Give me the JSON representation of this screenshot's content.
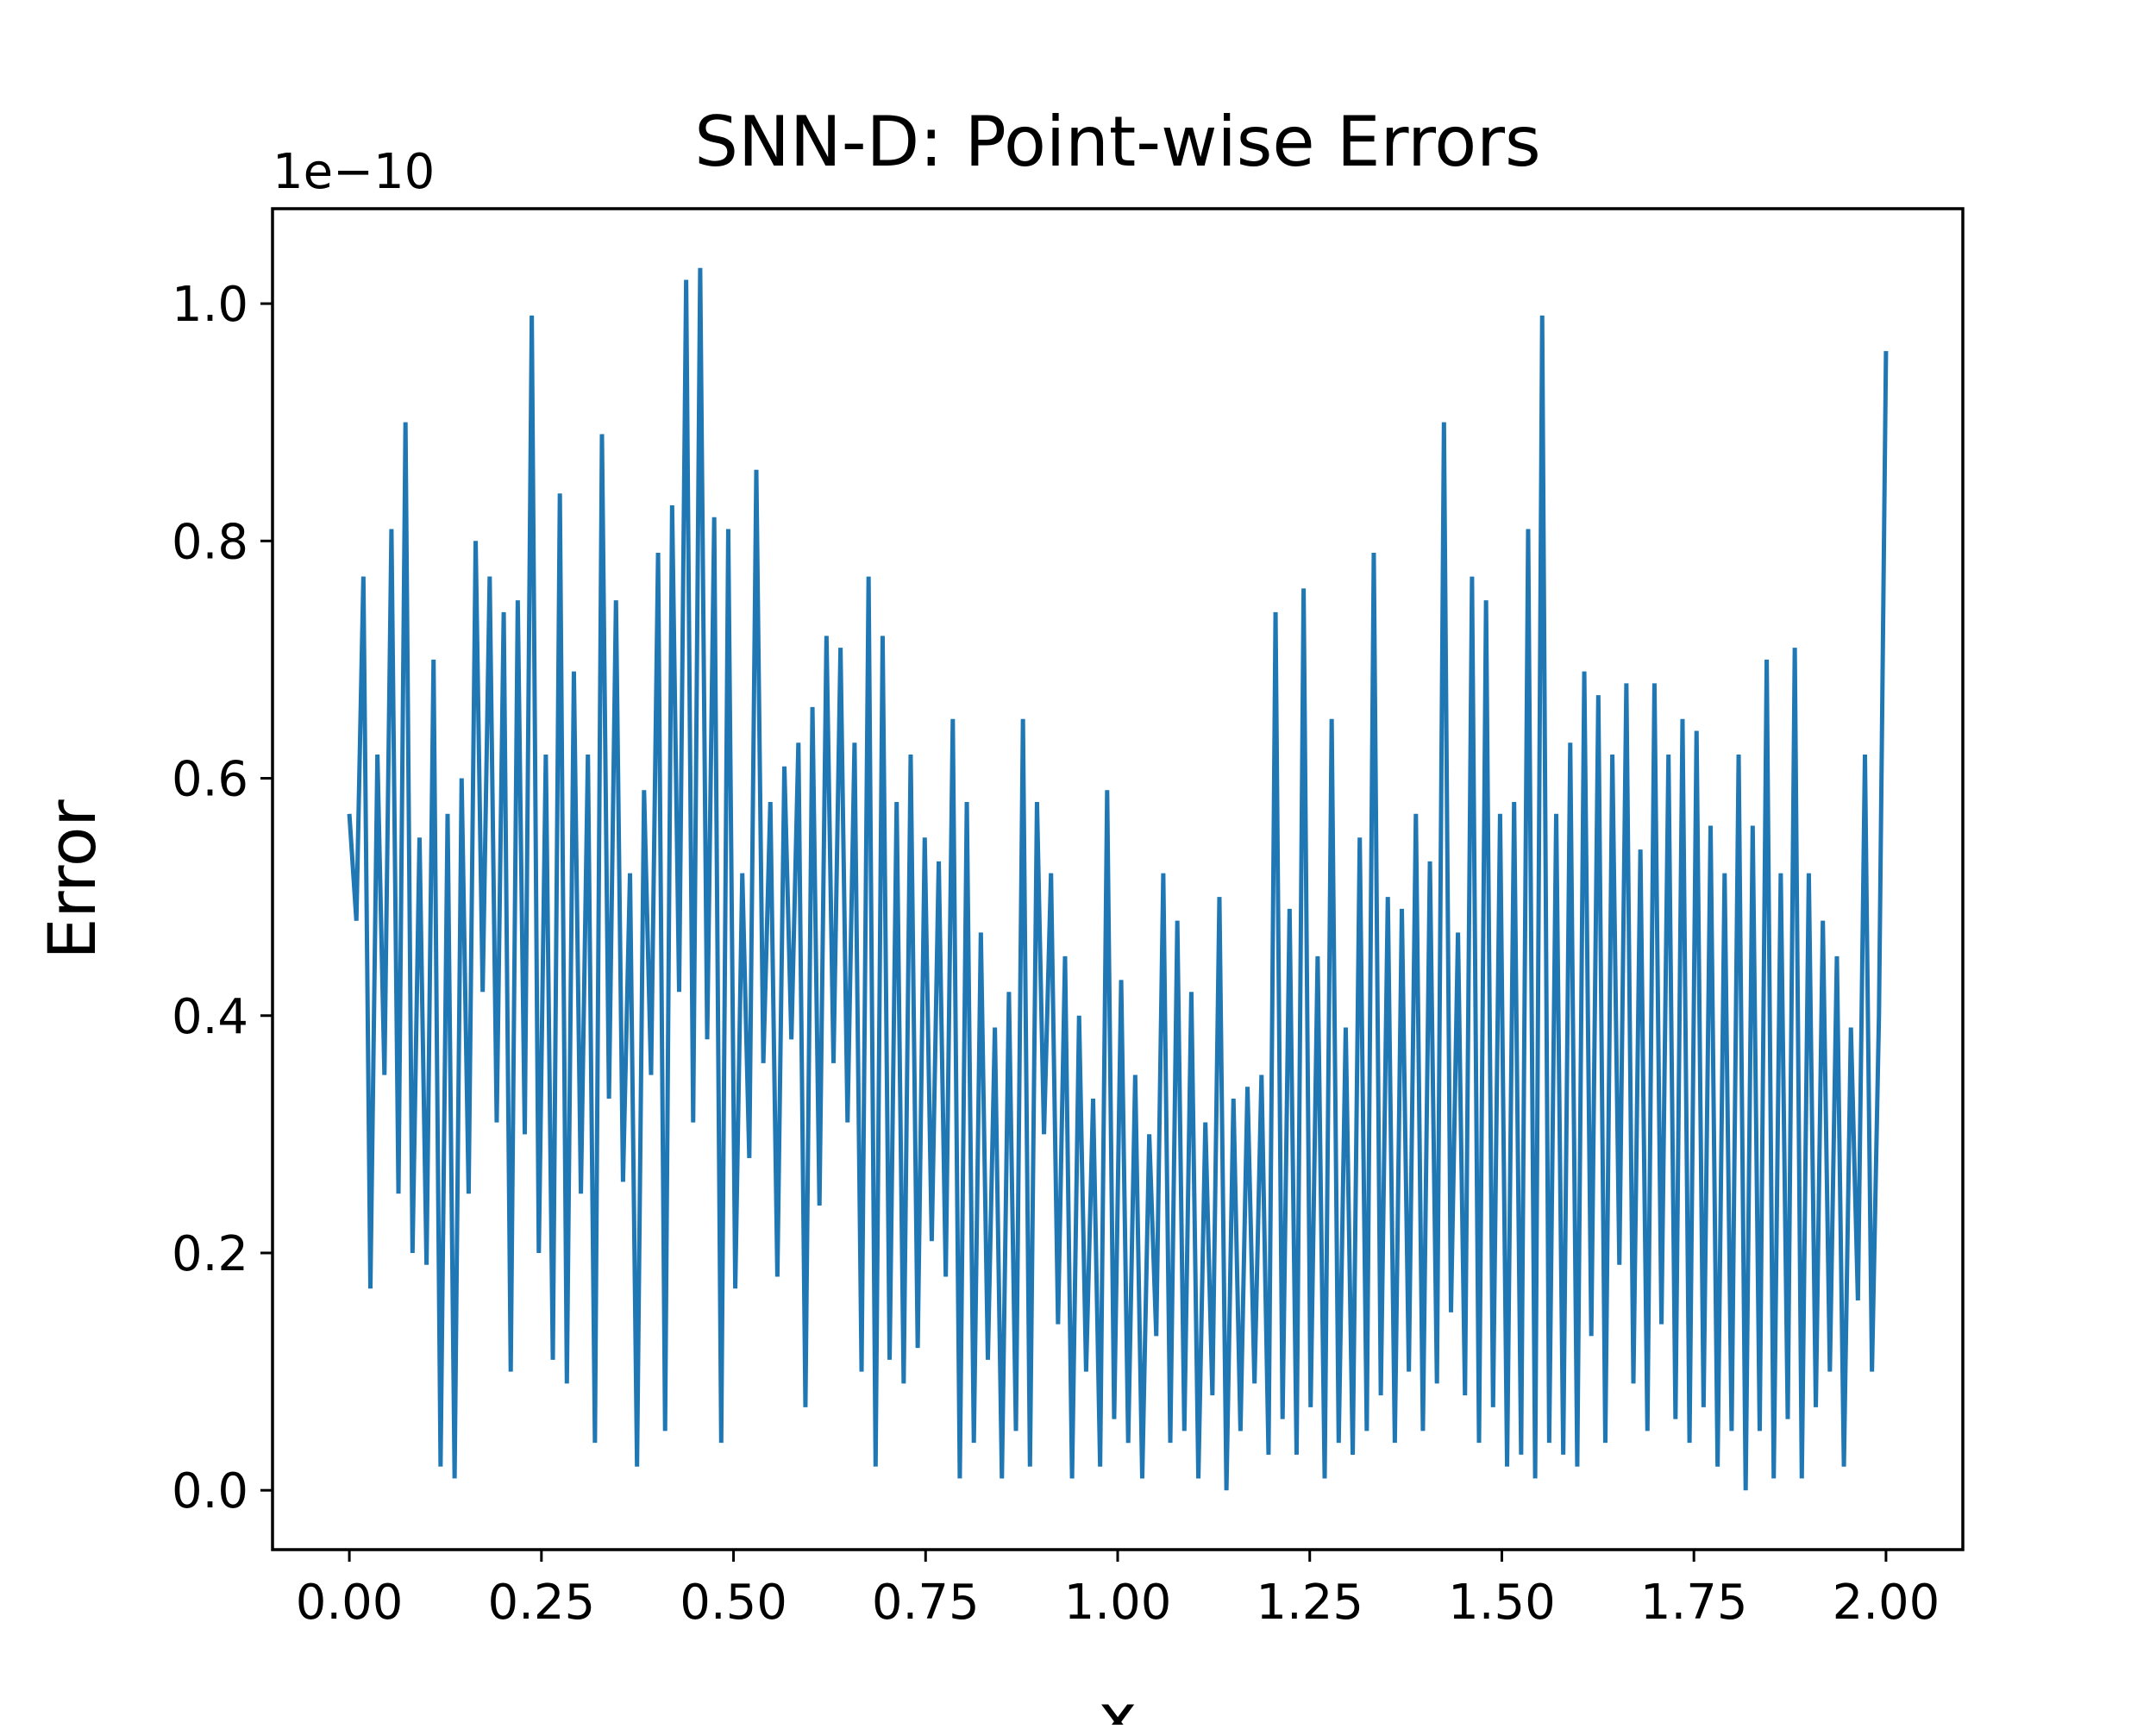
{
  "chart_data": {
    "type": "line",
    "title": "SNN-D: Point-wise Errors",
    "xlabel": "x",
    "ylabel": "Error",
    "y_offset_label": "1e−10",
    "y_scale": 1e-10,
    "xlim": [
      -0.1,
      2.1
    ],
    "ylim": [
      -0.05,
      1.08
    ],
    "x_ticks": [
      0.0,
      0.25,
      0.5,
      0.75,
      1.0,
      1.25,
      1.5,
      1.75,
      2.0
    ],
    "x_tick_labels": [
      "0.00",
      "0.25",
      "0.50",
      "0.75",
      "1.00",
      "1.25",
      "1.50",
      "1.75",
      "2.00"
    ],
    "y_ticks": [
      0.0,
      0.2,
      0.4,
      0.6,
      0.8,
      1.0
    ],
    "y_tick_labels": [
      "0.0",
      "0.2",
      "0.4",
      "0.6",
      "0.8",
      "1.0"
    ],
    "grid": false,
    "legend": "none",
    "series": [
      {
        "color": "#1f77b4",
        "x_range": [
          0.0,
          2.0
        ],
        "sampled_values": [
          0.57,
          0.48,
          0.77,
          0.17,
          0.62,
          0.35,
          0.81,
          0.25,
          0.9,
          0.2,
          0.55,
          0.19,
          0.7,
          0.02,
          0.57,
          0.01,
          0.6,
          0.25,
          0.8,
          0.42,
          0.77,
          0.31,
          0.74,
          0.1,
          0.75,
          0.3,
          0.99,
          0.2,
          0.62,
          0.11,
          0.84,
          0.09,
          0.69,
          0.25,
          0.62,
          0.04,
          0.89,
          0.33,
          0.75,
          0.26,
          0.52,
          0.02,
          0.59,
          0.35,
          0.79,
          0.05,
          0.83,
          0.42,
          1.02,
          0.31,
          1.03,
          0.38,
          0.82,
          0.04,
          0.81,
          0.17,
          0.52,
          0.28,
          0.86,
          0.36,
          0.58,
          0.18,
          0.61,
          0.38,
          0.63,
          0.07,
          0.66,
          0.24,
          0.72,
          0.36,
          0.71,
          0.31,
          0.63,
          0.1,
          0.77,
          0.02,
          0.72,
          0.11,
          0.58,
          0.09,
          0.62,
          0.12,
          0.55,
          0.21,
          0.53,
          0.18,
          0.65,
          0.01,
          0.58,
          0.04,
          0.47,
          0.11,
          0.39,
          0.01,
          0.42,
          0.05,
          0.65,
          0.02,
          0.58,
          0.3,
          0.52,
          0.14,
          0.45,
          0.01,
          0.4,
          0.1,
          0.33,
          0.02,
          0.59,
          0.06,
          0.43,
          0.04,
          0.35,
          0.01,
          0.3,
          0.13,
          0.52,
          0.04,
          0.48,
          0.05,
          0.42,
          0.01,
          0.31,
          0.08,
          0.5,
          0.0,
          0.33,
          0.05,
          0.34,
          0.09,
          0.35,
          0.03,
          0.74,
          0.06,
          0.49,
          0.03,
          0.76,
          0.07,
          0.45,
          0.01,
          0.65,
          0.04,
          0.39,
          0.03,
          0.55,
          0.05,
          0.79,
          0.08,
          0.5,
          0.04,
          0.49,
          0.1,
          0.57,
          0.05,
          0.53,
          0.09,
          0.9,
          0.15,
          0.47,
          0.08,
          0.77,
          0.04,
          0.75,
          0.07,
          0.57,
          0.02,
          0.58,
          0.03,
          0.81,
          0.01,
          0.99,
          0.04,
          0.57,
          0.03,
          0.63,
          0.02,
          0.69,
          0.13,
          0.67,
          0.04,
          0.62,
          0.19,
          0.68,
          0.09,
          0.54,
          0.05,
          0.68,
          0.14,
          0.62,
          0.06,
          0.65,
          0.04,
          0.64,
          0.07,
          0.56,
          0.02,
          0.52,
          0.05,
          0.62,
          0.0,
          0.56,
          0.05,
          0.7,
          0.01,
          0.52,
          0.06,
          0.71,
          0.01,
          0.52,
          0.07,
          0.48,
          0.1,
          0.45,
          0.02,
          0.39,
          0.16,
          0.62,
          0.1,
          0.4,
          0.96
        ]
      }
    ]
  }
}
